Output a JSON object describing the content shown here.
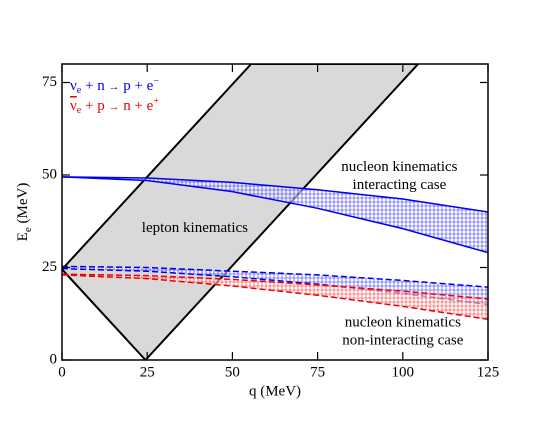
{
  "chart_data": {
    "type": "band",
    "x_label": "q (MeV)",
    "y_label": [
      "E",
      "e",
      " (MeV)"
    ],
    "xlim": [
      0,
      125
    ],
    "xticks": [
      0,
      25,
      50,
      75,
      100,
      125
    ],
    "ylim": [
      0,
      80
    ],
    "yticks": [
      0,
      25,
      50,
      75
    ],
    "x": [
      0,
      25,
      50,
      75,
      100,
      125
    ],
    "series": [
      {
        "name": [
          "ν",
          "e",
          " + n ",
          "→",
          " p + e",
          "−"
        ],
        "color": "#0000ee",
        "overline": false,
        "bands": [
          {
            "upper": [
              49.5,
              49.2,
              48,
              46,
              43.5,
              40
            ],
            "lower": [
              49.5,
              48.5,
              45.5,
              41,
              35.5,
              29
            ],
            "dashed": false
          },
          {
            "upper": [
              25.3,
              25,
              24,
              23,
              21.5,
              19.7
            ],
            "lower": [
              24.7,
              24,
              22.5,
              20.5,
              18,
              15
            ],
            "dashed": true
          }
        ]
      },
      {
        "name": [
          "ν",
          "e",
          " + p ",
          "→",
          " n + e",
          "+"
        ],
        "color": "#ee0000",
        "overline": true,
        "bands": [
          {
            "upper": [
              23.2,
              22.8,
              21.8,
              20.3,
              18.6,
              16.5
            ],
            "lower": [
              23,
              22,
              20,
              17.5,
              14.5,
              11
            ],
            "dashed": true
          }
        ]
      }
    ],
    "lepton_region": {
      "x": [
        0,
        24.5,
        104.5,
        55.5
      ],
      "values": [
        24.5,
        0,
        80,
        80
      ],
      "color": "#d9d9d9"
    },
    "annotations": [
      {
        "lines": [
          "nucleon kinematics",
          "interacting case"
        ],
        "x": 99,
        "y": 52
      },
      {
        "lines": [
          "lepton kinematics"
        ],
        "x": 39,
        "y": 35.5
      },
      {
        "lines": [
          "nucleon kinematics",
          "non-interacting case"
        ],
        "x": 100,
        "y": 10
      }
    ]
  }
}
